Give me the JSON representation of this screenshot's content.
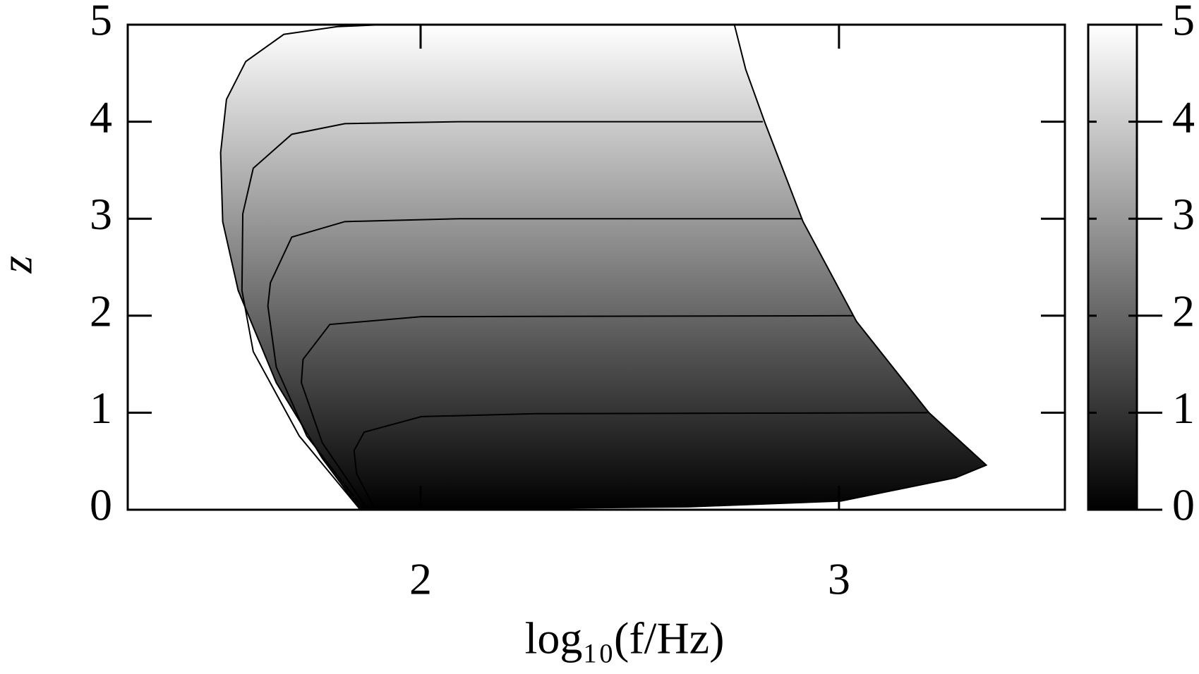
{
  "chart_data": {
    "type": "contour",
    "xlabel": "log₁₀(f/Hz)",
    "ylabel": "z",
    "xlim": [
      1.3,
      3.54
    ],
    "xticks": [
      2,
      3
    ],
    "ylim": [
      0,
      5
    ],
    "yticks": [
      0,
      1,
      2,
      3,
      4,
      5
    ],
    "zlim": [
      0,
      5
    ],
    "colorbar_ticks": [
      0,
      1,
      2,
      3,
      4,
      5
    ],
    "colormap": [
      "#000000",
      "#ffffff"
    ],
    "region": {
      "x": [
        1.856,
        1.765,
        1.655,
        1.564,
        1.527,
        1.522,
        1.536,
        1.582,
        1.673,
        1.801,
        1.911,
        2.75,
        2.777,
        2.823,
        2.914,
        3.042,
        3.215,
        3.352,
        3.279,
        3.005,
        2.64,
        1.911
      ],
      "y": [
        0,
        0.53,
        1.31,
        2.26,
        2.97,
        3.68,
        4.23,
        4.62,
        4.9,
        4.98,
        5,
        5,
        4.54,
        3.99,
        2.97,
        1.94,
        1.0,
        0.46,
        0.33,
        0.09,
        0.03,
        0
      ]
    },
    "contours": [
      {
        "x": [
          1.892,
          1.847,
          1.841,
          1.865,
          2.002,
          2.276,
          3.212
        ],
        "y": [
          0,
          0.37,
          0.61,
          0.8,
          0.96,
          0.99,
          1.0
        ]
      },
      {
        "x": [
          1.874,
          1.765,
          1.715,
          1.719,
          1.783,
          2.002,
          3.033
        ],
        "y": [
          0,
          0.69,
          1.31,
          1.55,
          1.91,
          1.99,
          2.0
        ]
      },
      {
        "x": [
          1.865,
          1.728,
          1.655,
          1.635,
          1.641,
          1.692,
          1.819,
          2.093,
          2.911
        ],
        "y": [
          0,
          0.76,
          1.47,
          2.1,
          2.34,
          2.81,
          2.97,
          3.0,
          3.0
        ]
      },
      {
        "x": [
          1.856,
          1.71,
          1.6,
          1.573,
          1.575,
          1.6,
          1.692,
          1.819,
          2.093,
          2.818
        ],
        "y": [
          0,
          0.76,
          1.63,
          2.26,
          3.05,
          3.52,
          3.87,
          3.98,
          4.0,
          4.0
        ]
      }
    ]
  }
}
